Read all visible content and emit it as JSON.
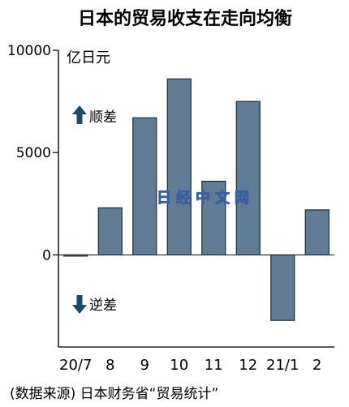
{
  "chart_data": {
    "type": "bar",
    "title": "日本的贸易收支在走向均衡",
    "unit_label": "亿日元",
    "categories": [
      "20/7",
      "8",
      "9",
      "10",
      "11",
      "12",
      "21/1",
      "2"
    ],
    "values": [
      -50,
      2300,
      6700,
      8600,
      3600,
      7500,
      -3200,
      2200
    ],
    "ylim": [
      -4500,
      10000
    ],
    "yticks": [
      "10000",
      "5000",
      "0"
    ],
    "annotations": {
      "surplus": "顺差",
      "deficit": "逆差"
    },
    "source": "(数据来源) 日本财务省“贸易统计”",
    "watermark": "日经中文网",
    "bar_color": "#5f7b95",
    "arrow_color": "#1e4a66",
    "grid": false
  }
}
